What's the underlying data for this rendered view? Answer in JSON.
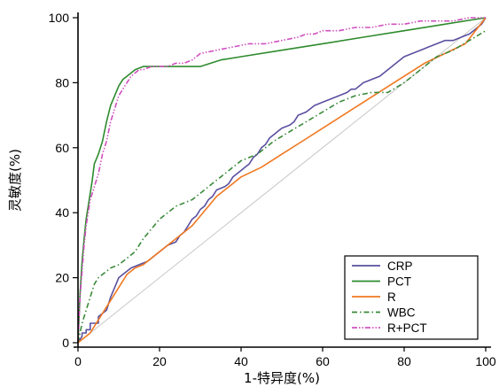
{
  "chart_data": {
    "type": "line",
    "xlabel": "1-特异度(%)",
    "ylabel": "灵敏度(%)",
    "xlim": [
      0,
      100
    ],
    "ylim": [
      0,
      100
    ],
    "xticks": [
      0,
      20,
      40,
      60,
      80,
      100
    ],
    "yticks": [
      0,
      20,
      40,
      60,
      80,
      100
    ],
    "grid": false,
    "legend_position": "bottom-right",
    "reference_line": {
      "x": [
        0,
        100
      ],
      "y": [
        0,
        100
      ],
      "color": "#c8c8c8"
    },
    "series": [
      {
        "name": "CRP",
        "color": "#5a50a0",
        "dash": "solid",
        "x": [
          0,
          1,
          1,
          2,
          2,
          3,
          3,
          5,
          5,
          7,
          8,
          9,
          10,
          11,
          12,
          13,
          15,
          17,
          18,
          19,
          20,
          21,
          22,
          24,
          25,
          26,
          27,
          28,
          29,
          30,
          31,
          32,
          33,
          34,
          36,
          37,
          38,
          40,
          41,
          42,
          43,
          44,
          45,
          46,
          47,
          48,
          49,
          50,
          52,
          53,
          54,
          56,
          57,
          58,
          60,
          62,
          64,
          66,
          67,
          68,
          69,
          70,
          72,
          74,
          76,
          78,
          80,
          82,
          84,
          86,
          88,
          90,
          92,
          94,
          96,
          97,
          98,
          99,
          100
        ],
        "y": [
          0,
          2,
          3,
          3,
          4,
          4,
          6,
          6,
          8,
          10,
          14,
          17,
          20,
          21,
          22,
          23,
          24,
          25,
          26,
          27,
          28,
          29,
          30,
          31,
          33,
          34,
          36,
          38,
          39,
          41,
          42,
          44,
          45,
          47,
          48,
          49,
          51,
          53,
          54,
          55,
          57,
          58,
          60,
          61,
          63,
          64,
          65,
          66,
          67,
          68,
          70,
          71,
          72,
          73,
          74,
          75,
          76,
          77,
          78,
          78,
          79,
          80,
          81,
          82,
          84,
          86,
          88,
          89,
          90,
          91,
          92,
          93,
          93,
          94,
          95,
          96,
          97,
          98,
          100
        ]
      },
      {
        "name": "PCT",
        "color": "#2e8b2e",
        "dash": "solid",
        "x": [
          0,
          0.5,
          1,
          1.5,
          2,
          2.5,
          3,
          3.5,
          4,
          5,
          6,
          7,
          8,
          9,
          10,
          11,
          12,
          14,
          16,
          18,
          20,
          25,
          30,
          35,
          40,
          50,
          60,
          70,
          80,
          90,
          100
        ],
        "y": [
          0,
          15,
          25,
          32,
          38,
          42,
          46,
          50,
          55,
          58,
          62,
          68,
          73,
          76,
          79,
          81,
          82,
          84,
          85,
          85,
          85,
          85,
          85,
          87,
          88,
          90,
          92,
          94,
          96,
          98,
          100
        ]
      },
      {
        "name": "R",
        "color": "#f07820",
        "dash": "solid",
        "x": [
          0,
          1,
          2,
          3,
          4,
          5,
          6,
          7,
          8,
          9,
          10,
          12,
          14,
          16,
          18,
          20,
          22,
          24,
          26,
          28,
          30,
          32,
          34,
          36,
          38,
          40,
          45,
          50,
          55,
          60,
          65,
          70,
          75,
          80,
          85,
          90,
          95,
          100
        ],
        "y": [
          0,
          1,
          2,
          3,
          5,
          7,
          9,
          11,
          13,
          15,
          17,
          21,
          23,
          24,
          26,
          28,
          30,
          32,
          34,
          36,
          39,
          42,
          45,
          47,
          49,
          51,
          54,
          58,
          62,
          66,
          70,
          74,
          78,
          82,
          86,
          89,
          92,
          100
        ]
      },
      {
        "name": "WBC",
        "color": "#3a8a3a",
        "dash": "dashdot",
        "x": [
          0,
          1,
          2,
          3,
          4,
          5,
          6,
          7,
          8,
          10,
          12,
          14,
          16,
          18,
          20,
          22,
          24,
          26,
          28,
          30,
          32,
          34,
          36,
          38,
          40,
          44,
          48,
          52,
          56,
          60,
          64,
          68,
          72,
          76,
          80,
          84,
          88,
          92,
          96,
          100
        ],
        "y": [
          0,
          6,
          10,
          14,
          18,
          20,
          21,
          22,
          23,
          24,
          26,
          28,
          32,
          35,
          38,
          40,
          42,
          43,
          44,
          46,
          48,
          50,
          52,
          54,
          56,
          58,
          62,
          65,
          68,
          71,
          74,
          76,
          77,
          77,
          80,
          84,
          88,
          90,
          93,
          96
        ]
      },
      {
        "name": "R+PCT",
        "color": "#d050c0",
        "dash": "dashdotdot",
        "x": [
          0,
          0.5,
          1,
          1.5,
          2,
          2.5,
          3,
          3.5,
          4,
          5,
          6,
          7,
          8,
          9,
          10,
          11,
          12,
          13,
          14,
          15,
          16,
          18,
          20,
          22,
          24,
          26,
          28,
          30,
          34,
          38,
          42,
          46,
          50,
          54,
          56,
          58,
          60,
          64,
          68,
          72,
          76,
          80,
          84,
          88,
          92,
          96,
          100
        ],
        "y": [
          0,
          14,
          22,
          30,
          36,
          40,
          44,
          46,
          48,
          52,
          58,
          62,
          68,
          72,
          76,
          78,
          80,
          82,
          83,
          84,
          84,
          85,
          85,
          85,
          86,
          86,
          87,
          89,
          90,
          91,
          92,
          92,
          93,
          94,
          95,
          95,
          96,
          96,
          97,
          97,
          98,
          98,
          99,
          99,
          99,
          100,
          100
        ]
      }
    ]
  }
}
